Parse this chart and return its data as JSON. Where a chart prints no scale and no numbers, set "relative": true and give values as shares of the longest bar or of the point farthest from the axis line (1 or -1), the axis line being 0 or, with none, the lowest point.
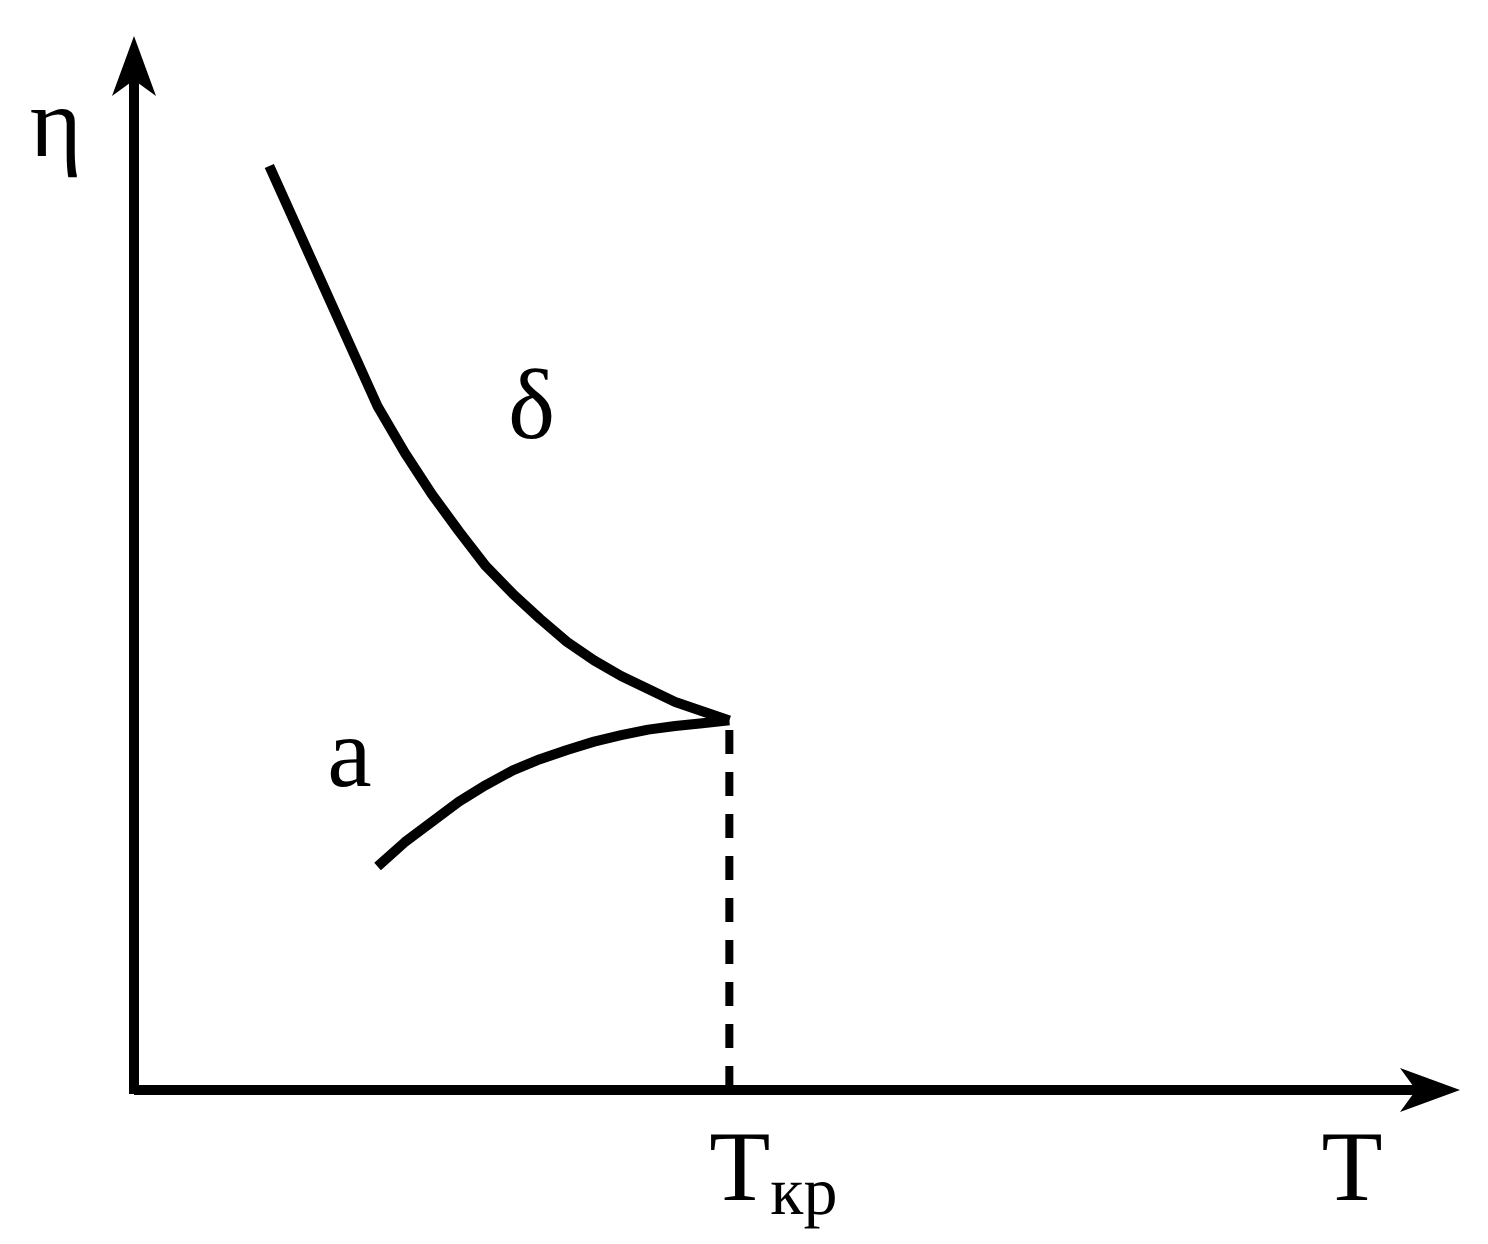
{
  "chart_data": {
    "type": "line",
    "relative": true,
    "xlabel": "T",
    "ylabel": "η",
    "line_style": "solid",
    "categories": [
      null,
      null,
      null,
      null,
      null,
      null,
      null,
      null,
      null,
      null,
      null,
      null,
      null,
      null,
      null,
      null,
      null,
      null,
      null,
      null,
      null,
      null,
      null,
      null,
      null,
      null,
      null,
      null,
      null,
      null,
      null,
      null,
      null,
      null,
      null,
      null,
      null,
      null,
      null,
      null,
      null,
      null,
      null,
      null,
      null,
      null,
      null,
      null,
      null,
      null
    ],
    "series": [
      {
        "name": "δ",
        "color": "#000000",
        "values": [
          null,
          null,
          null,
          null,
          null,
          1,
          0.935,
          0.87,
          0.805,
          0.74,
          0.69,
          0.645,
          0.605,
          0.567,
          0.537,
          0.51,
          0.485,
          0.465,
          0.448,
          0.434,
          0.42,
          0.41,
          0.4,
          null,
          null,
          null,
          null,
          null,
          null,
          null,
          null,
          null,
          null,
          null,
          null,
          null,
          null,
          null,
          null,
          null,
          null,
          null,
          null,
          null,
          null,
          null,
          null,
          null,
          null,
          null
        ]
      },
      {
        "name": "a",
        "color": "#000000",
        "values": [
          null,
          null,
          null,
          null,
          null,
          null,
          null,
          null,
          null,
          0.242,
          0.268,
          0.29,
          0.312,
          0.33,
          0.346,
          0.358,
          0.368,
          0.377,
          0.384,
          0.39,
          0.394,
          0.397,
          0.4,
          null,
          null,
          null,
          null,
          null,
          null,
          null,
          null,
          null,
          null,
          null,
          null,
          null,
          null,
          null,
          null,
          null,
          null,
          null,
          null,
          null,
          null,
          null,
          null,
          null,
          null,
          null
        ]
      }
    ],
    "ref_lines": [
      {
        "axis": "x",
        "label": "T$_{кр}$",
        "color": "#000000",
        "line_style": "dashed"
      }
    ]
  }
}
